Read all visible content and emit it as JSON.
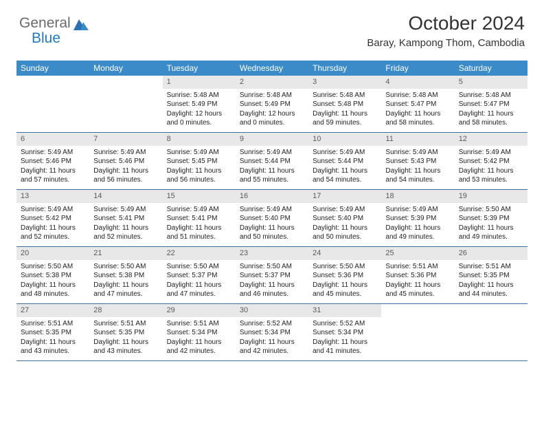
{
  "logo": {
    "part1": "General",
    "part2": "Blue"
  },
  "header": {
    "title": "October 2024",
    "location": "Baray, Kampong Thom, Cambodia"
  },
  "colors": {
    "header_bg": "#3b8bc9",
    "row_border": "#3b6fa0",
    "daynum_bg": "#e8e8e8",
    "logo_gray": "#6b6b6b",
    "logo_blue": "#2179c0"
  },
  "weekdays": [
    "Sunday",
    "Monday",
    "Tuesday",
    "Wednesday",
    "Thursday",
    "Friday",
    "Saturday"
  ],
  "weeks": [
    [
      null,
      null,
      {
        "n": "1",
        "sr": "Sunrise: 5:48 AM",
        "ss": "Sunset: 5:49 PM",
        "dl": "Daylight: 12 hours and 0 minutes."
      },
      {
        "n": "2",
        "sr": "Sunrise: 5:48 AM",
        "ss": "Sunset: 5:49 PM",
        "dl": "Daylight: 12 hours and 0 minutes."
      },
      {
        "n": "3",
        "sr": "Sunrise: 5:48 AM",
        "ss": "Sunset: 5:48 PM",
        "dl": "Daylight: 11 hours and 59 minutes."
      },
      {
        "n": "4",
        "sr": "Sunrise: 5:48 AM",
        "ss": "Sunset: 5:47 PM",
        "dl": "Daylight: 11 hours and 58 minutes."
      },
      {
        "n": "5",
        "sr": "Sunrise: 5:48 AM",
        "ss": "Sunset: 5:47 PM",
        "dl": "Daylight: 11 hours and 58 minutes."
      }
    ],
    [
      {
        "n": "6",
        "sr": "Sunrise: 5:49 AM",
        "ss": "Sunset: 5:46 PM",
        "dl": "Daylight: 11 hours and 57 minutes."
      },
      {
        "n": "7",
        "sr": "Sunrise: 5:49 AM",
        "ss": "Sunset: 5:46 PM",
        "dl": "Daylight: 11 hours and 56 minutes."
      },
      {
        "n": "8",
        "sr": "Sunrise: 5:49 AM",
        "ss": "Sunset: 5:45 PM",
        "dl": "Daylight: 11 hours and 56 minutes."
      },
      {
        "n": "9",
        "sr": "Sunrise: 5:49 AM",
        "ss": "Sunset: 5:44 PM",
        "dl": "Daylight: 11 hours and 55 minutes."
      },
      {
        "n": "10",
        "sr": "Sunrise: 5:49 AM",
        "ss": "Sunset: 5:44 PM",
        "dl": "Daylight: 11 hours and 54 minutes."
      },
      {
        "n": "11",
        "sr": "Sunrise: 5:49 AM",
        "ss": "Sunset: 5:43 PM",
        "dl": "Daylight: 11 hours and 54 minutes."
      },
      {
        "n": "12",
        "sr": "Sunrise: 5:49 AM",
        "ss": "Sunset: 5:42 PM",
        "dl": "Daylight: 11 hours and 53 minutes."
      }
    ],
    [
      {
        "n": "13",
        "sr": "Sunrise: 5:49 AM",
        "ss": "Sunset: 5:42 PM",
        "dl": "Daylight: 11 hours and 52 minutes."
      },
      {
        "n": "14",
        "sr": "Sunrise: 5:49 AM",
        "ss": "Sunset: 5:41 PM",
        "dl": "Daylight: 11 hours and 52 minutes."
      },
      {
        "n": "15",
        "sr": "Sunrise: 5:49 AM",
        "ss": "Sunset: 5:41 PM",
        "dl": "Daylight: 11 hours and 51 minutes."
      },
      {
        "n": "16",
        "sr": "Sunrise: 5:49 AM",
        "ss": "Sunset: 5:40 PM",
        "dl": "Daylight: 11 hours and 50 minutes."
      },
      {
        "n": "17",
        "sr": "Sunrise: 5:49 AM",
        "ss": "Sunset: 5:40 PM",
        "dl": "Daylight: 11 hours and 50 minutes."
      },
      {
        "n": "18",
        "sr": "Sunrise: 5:49 AM",
        "ss": "Sunset: 5:39 PM",
        "dl": "Daylight: 11 hours and 49 minutes."
      },
      {
        "n": "19",
        "sr": "Sunrise: 5:50 AM",
        "ss": "Sunset: 5:39 PM",
        "dl": "Daylight: 11 hours and 49 minutes."
      }
    ],
    [
      {
        "n": "20",
        "sr": "Sunrise: 5:50 AM",
        "ss": "Sunset: 5:38 PM",
        "dl": "Daylight: 11 hours and 48 minutes."
      },
      {
        "n": "21",
        "sr": "Sunrise: 5:50 AM",
        "ss": "Sunset: 5:38 PM",
        "dl": "Daylight: 11 hours and 47 minutes."
      },
      {
        "n": "22",
        "sr": "Sunrise: 5:50 AM",
        "ss": "Sunset: 5:37 PM",
        "dl": "Daylight: 11 hours and 47 minutes."
      },
      {
        "n": "23",
        "sr": "Sunrise: 5:50 AM",
        "ss": "Sunset: 5:37 PM",
        "dl": "Daylight: 11 hours and 46 minutes."
      },
      {
        "n": "24",
        "sr": "Sunrise: 5:50 AM",
        "ss": "Sunset: 5:36 PM",
        "dl": "Daylight: 11 hours and 45 minutes."
      },
      {
        "n": "25",
        "sr": "Sunrise: 5:51 AM",
        "ss": "Sunset: 5:36 PM",
        "dl": "Daylight: 11 hours and 45 minutes."
      },
      {
        "n": "26",
        "sr": "Sunrise: 5:51 AM",
        "ss": "Sunset: 5:35 PM",
        "dl": "Daylight: 11 hours and 44 minutes."
      }
    ],
    [
      {
        "n": "27",
        "sr": "Sunrise: 5:51 AM",
        "ss": "Sunset: 5:35 PM",
        "dl": "Daylight: 11 hours and 43 minutes."
      },
      {
        "n": "28",
        "sr": "Sunrise: 5:51 AM",
        "ss": "Sunset: 5:35 PM",
        "dl": "Daylight: 11 hours and 43 minutes."
      },
      {
        "n": "29",
        "sr": "Sunrise: 5:51 AM",
        "ss": "Sunset: 5:34 PM",
        "dl": "Daylight: 11 hours and 42 minutes."
      },
      {
        "n": "30",
        "sr": "Sunrise: 5:52 AM",
        "ss": "Sunset: 5:34 PM",
        "dl": "Daylight: 11 hours and 42 minutes."
      },
      {
        "n": "31",
        "sr": "Sunrise: 5:52 AM",
        "ss": "Sunset: 5:34 PM",
        "dl": "Daylight: 11 hours and 41 minutes."
      },
      null,
      null
    ]
  ]
}
